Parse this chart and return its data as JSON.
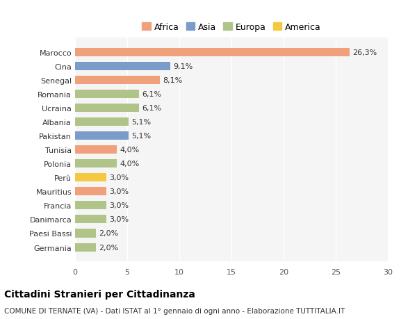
{
  "categories": [
    "Germania",
    "Paesi Bassi",
    "Danimarca",
    "Francia",
    "Mauritius",
    "Perù",
    "Polonia",
    "Tunisia",
    "Pakistan",
    "Albania",
    "Ucraina",
    "Romania",
    "Senegal",
    "Cina",
    "Marocco"
  ],
  "values": [
    2.0,
    2.0,
    3.0,
    3.0,
    3.0,
    3.0,
    4.0,
    4.0,
    5.1,
    5.1,
    6.1,
    6.1,
    8.1,
    9.1,
    26.3
  ],
  "labels": [
    "2,0%",
    "2,0%",
    "3,0%",
    "3,0%",
    "3,0%",
    "3,0%",
    "4,0%",
    "4,0%",
    "5,1%",
    "5,1%",
    "6,1%",
    "6,1%",
    "8,1%",
    "9,1%",
    "26,3%"
  ],
  "colors": [
    "#b0c48a",
    "#b0c48a",
    "#b0c48a",
    "#b0c48a",
    "#f0a07a",
    "#f5c842",
    "#b0c48a",
    "#f0a07a",
    "#7a9cc8",
    "#b0c48a",
    "#b0c48a",
    "#b0c48a",
    "#f0a07a",
    "#7a9cc8",
    "#f0a07a"
  ],
  "legend": [
    {
      "label": "Africa",
      "color": "#f0a07a"
    },
    {
      "label": "Asia",
      "color": "#7a9cc8"
    },
    {
      "label": "Europa",
      "color": "#b0c48a"
    },
    {
      "label": "America",
      "color": "#f5c842"
    }
  ],
  "xlim": [
    0,
    30
  ],
  "xticks": [
    0,
    5,
    10,
    15,
    20,
    25,
    30
  ],
  "title": "Cittadini Stranieri per Cittadinanza",
  "subtitle": "COMUNE DI TERNATE (VA) - Dati ISTAT al 1° gennaio di ogni anno - Elaborazione TUTTITALIA.IT",
  "background_color": "#ffffff",
  "bar_background": "#f5f5f5"
}
